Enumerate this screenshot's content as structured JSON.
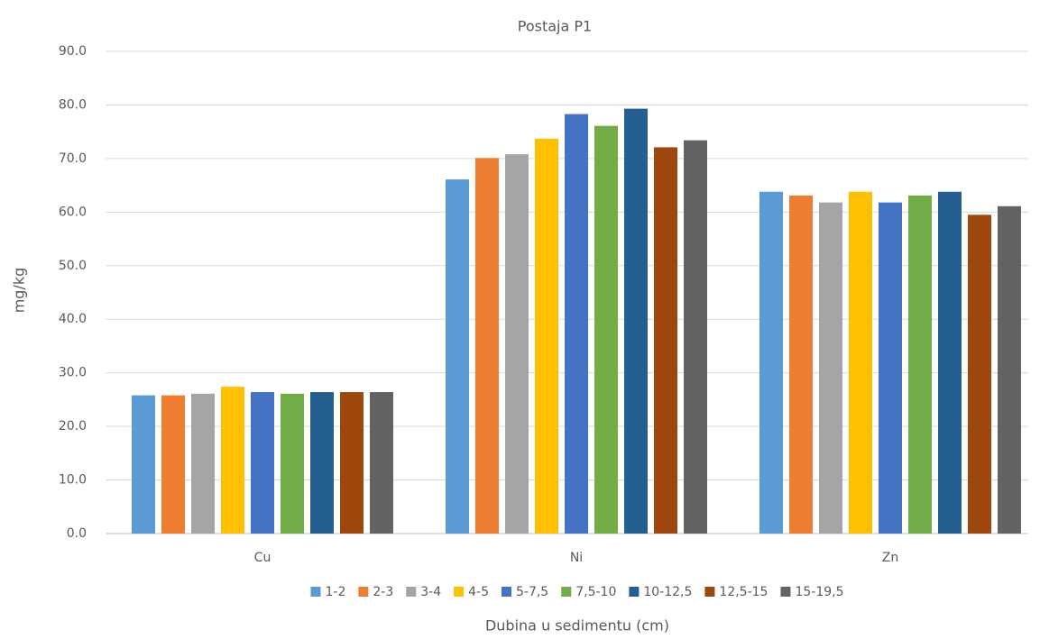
{
  "chart_data": {
    "type": "bar",
    "title": "Postaja P1",
    "x_label": "Dubina u sedimentu (cm)",
    "y_label": "mg/kg",
    "categories": [
      "Cu",
      "Ni",
      "Zn"
    ],
    "series": [
      {
        "name": "1-2",
        "color": "#5b9bd5",
        "values": [
          25.8,
          66.1,
          63.8
        ]
      },
      {
        "name": "2-3",
        "color": "#ed7d31",
        "values": [
          25.8,
          70.1,
          63.1
        ]
      },
      {
        "name": "3-4",
        "color": "#a5a5a5",
        "values": [
          26.1,
          70.8,
          61.8
        ]
      },
      {
        "name": "4-5",
        "color": "#ffc000",
        "values": [
          27.4,
          73.7,
          63.8
        ]
      },
      {
        "name": "5-7,5",
        "color": "#4472c4",
        "values": [
          26.4,
          78.3,
          61.8
        ]
      },
      {
        "name": "7,5-10",
        "color": "#70ad47",
        "values": [
          26.1,
          76.1,
          63.1
        ]
      },
      {
        "name": "10-12,5",
        "color": "#255e91",
        "values": [
          26.4,
          79.3,
          63.8
        ]
      },
      {
        "name": "12,5-15",
        "color": "#9e480e",
        "values": [
          26.4,
          72.1,
          59.5
        ]
      },
      {
        "name": "15-19,5",
        "color": "#636363",
        "values": [
          26.4,
          73.4,
          61.1
        ]
      }
    ],
    "ylim": [
      0,
      90
    ],
    "yticks": [
      {
        "value": 0,
        "label": "0.0"
      },
      {
        "value": 10,
        "label": "10.0"
      },
      {
        "value": 20,
        "label": "20.0"
      },
      {
        "value": 30,
        "label": "30.0"
      },
      {
        "value": 40,
        "label": "40.0"
      },
      {
        "value": 50,
        "label": "50.0"
      },
      {
        "value": 60,
        "label": "60.0"
      },
      {
        "value": 70,
        "label": "70.0"
      },
      {
        "value": 80,
        "label": "80.0"
      },
      {
        "value": 90,
        "label": "90.0"
      }
    ],
    "grid": true,
    "legend": "bottom"
  }
}
